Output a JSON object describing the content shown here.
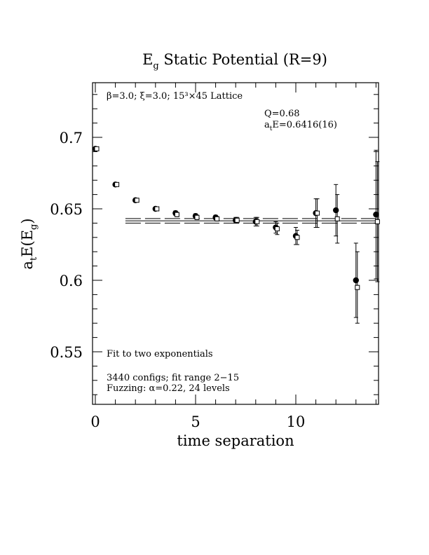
{
  "chart_data": {
    "type": "scatter",
    "title_main": "E",
    "title_sub": "g",
    "title_rest": " Static Potential (R=9)",
    "xlabel": "time separation",
    "ylabel_main": "a",
    "ylabel_sub1": "t",
    "ylabel_mid": "E(E",
    "ylabel_sub2": "g",
    "ylabel_end": ")",
    "xlim": [
      0,
      14
    ],
    "ylim": [
      0.51,
      0.735
    ],
    "xticks": [
      {
        "value": 0,
        "label": "0"
      },
      {
        "value": 5,
        "label": "5"
      },
      {
        "value": 10,
        "label": "10"
      }
    ],
    "yticks": [
      {
        "value": 0.55,
        "label": "0.55"
      },
      {
        "value": 0.6,
        "label": "0.6"
      },
      {
        "value": 0.65,
        "label": "0.65"
      },
      {
        "value": 0.7,
        "label": "0.7"
      }
    ],
    "annotations": {
      "lattice": "β=3.0; ξ=3.0; 15³×45 Lattice",
      "q": "Q=0.68",
      "energy_main": "a",
      "energy_sub": "t",
      "energy_rest": "E=0.6416(16)",
      "fit_type": "Fit to two exponentials",
      "configs": "3440 configs; fit range 2−15",
      "fuzzing": "Fuzzing: α=0.22, 24 levels"
    },
    "fit": {
      "value": 0.6416,
      "error": 0.0016,
      "x_range": [
        1.5,
        14
      ]
    },
    "series": [
      {
        "marker": "filled-circle",
        "points": [
          {
            "x": 0,
            "y": 0.692,
            "err": 0.001
          },
          {
            "x": 1,
            "y": 0.667,
            "err": 0.001
          },
          {
            "x": 2,
            "y": 0.656,
            "err": 0.001
          },
          {
            "x": 3,
            "y": 0.65,
            "err": 0.001
          },
          {
            "x": 4,
            "y": 0.647,
            "err": 0.0015
          },
          {
            "x": 5,
            "y": 0.645,
            "err": 0.0015
          },
          {
            "x": 6,
            "y": 0.644,
            "err": 0.0015
          },
          {
            "x": 7,
            "y": 0.642,
            "err": 0.002
          },
          {
            "x": 8,
            "y": 0.641,
            "err": 0.003
          },
          {
            "x": 9,
            "y": 0.637,
            "err": 0.004
          },
          {
            "x": 10,
            "y": 0.631,
            "err": 0.006
          },
          {
            "x": 11,
            "y": 0.647,
            "err": 0.01
          },
          {
            "x": 12,
            "y": 0.649,
            "err": 0.018
          },
          {
            "x": 13,
            "y": 0.6,
            "err": 0.026
          },
          {
            "x": 14,
            "y": 0.646,
            "err": 0.045
          }
        ]
      },
      {
        "marker": "open-square",
        "points": [
          {
            "x": 0,
            "y": 0.692,
            "err": 0.001
          },
          {
            "x": 1,
            "y": 0.667,
            "err": 0.001
          },
          {
            "x": 2,
            "y": 0.656,
            "err": 0.001
          },
          {
            "x": 3,
            "y": 0.65,
            "err": 0.001
          },
          {
            "x": 4,
            "y": 0.646,
            "err": 0.0015
          },
          {
            "x": 5,
            "y": 0.644,
            "err": 0.0015
          },
          {
            "x": 6,
            "y": 0.643,
            "err": 0.0015
          },
          {
            "x": 7,
            "y": 0.642,
            "err": 0.002
          },
          {
            "x": 8,
            "y": 0.641,
            "err": 0.003
          },
          {
            "x": 9,
            "y": 0.636,
            "err": 0.004
          },
          {
            "x": 10,
            "y": 0.63,
            "err": 0.005
          },
          {
            "x": 11,
            "y": 0.647,
            "err": 0.01
          },
          {
            "x": 12,
            "y": 0.643,
            "err": 0.017
          },
          {
            "x": 13,
            "y": 0.595,
            "err": 0.025
          },
          {
            "x": 14,
            "y": 0.641,
            "err": 0.042
          }
        ]
      }
    ]
  }
}
